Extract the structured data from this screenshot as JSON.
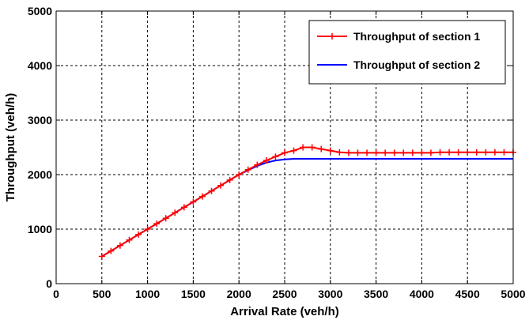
{
  "chart_data": {
    "type": "line",
    "xlabel": "Arrival Rate (veh/h)",
    "ylabel": "Throughput (veh/h)",
    "xlim": [
      0,
      5000
    ],
    "ylim": [
      0,
      5000
    ],
    "x_ticks": [
      "0",
      "500",
      "1000",
      "1500",
      "2000",
      "2500",
      "3000",
      "3500",
      "4000",
      "4500",
      "5000"
    ],
    "y_ticks": [
      "0",
      "1000",
      "2000",
      "3000",
      "4000",
      "5000"
    ],
    "grid": "dashed",
    "legend_position": "top-right",
    "series": [
      {
        "name": "Throughput of section 1",
        "color": "#ff0000",
        "marker": "plus",
        "x": [
          500,
          600,
          700,
          800,
          900,
          1000,
          1100,
          1200,
          1300,
          1400,
          1500,
          1600,
          1700,
          1800,
          1900,
          2000,
          2100,
          2200,
          2300,
          2400,
          2500,
          2600,
          2700,
          2800,
          2900,
          3000,
          3100,
          3200,
          3300,
          3400,
          3500,
          3600,
          3700,
          3800,
          3900,
          4000,
          4100,
          4200,
          4300,
          4400,
          4500,
          4600,
          4700,
          4800,
          4900,
          5000
        ],
        "y": [
          500,
          600,
          700,
          800,
          900,
          1000,
          1100,
          1200,
          1300,
          1400,
          1500,
          1600,
          1700,
          1800,
          1900,
          2000,
          2090,
          2180,
          2260,
          2330,
          2400,
          2440,
          2500,
          2500,
          2470,
          2440,
          2410,
          2400,
          2400,
          2400,
          2400,
          2400,
          2400,
          2400,
          2400,
          2400,
          2400,
          2410,
          2410,
          2410,
          2410,
          2410,
          2410,
          2410,
          2410,
          2410
        ]
      },
      {
        "name": "Throughput of section 2",
        "color": "#0000ff",
        "marker": "none",
        "x": [
          500,
          600,
          700,
          800,
          900,
          1000,
          1100,
          1200,
          1300,
          1400,
          1500,
          1600,
          1700,
          1800,
          1900,
          2000,
          2100,
          2200,
          2300,
          2400,
          2500,
          2600,
          2700,
          2800,
          2900,
          3000,
          3100,
          3200,
          3300,
          3400,
          3500,
          3600,
          3700,
          3800,
          3900,
          4000,
          4100,
          4200,
          4300,
          4400,
          4500,
          4600,
          4700,
          4800,
          4900,
          5000
        ],
        "y": [
          500,
          600,
          700,
          800,
          900,
          1000,
          1100,
          1200,
          1300,
          1400,
          1500,
          1600,
          1700,
          1800,
          1900,
          2000,
          2080,
          2160,
          2220,
          2260,
          2280,
          2290,
          2290,
          2290,
          2290,
          2290,
          2290,
          2290,
          2290,
          2290,
          2290,
          2290,
          2290,
          2290,
          2290,
          2290,
          2290,
          2290,
          2290,
          2290,
          2290,
          2290,
          2290,
          2290,
          2290,
          2290
        ]
      }
    ]
  }
}
